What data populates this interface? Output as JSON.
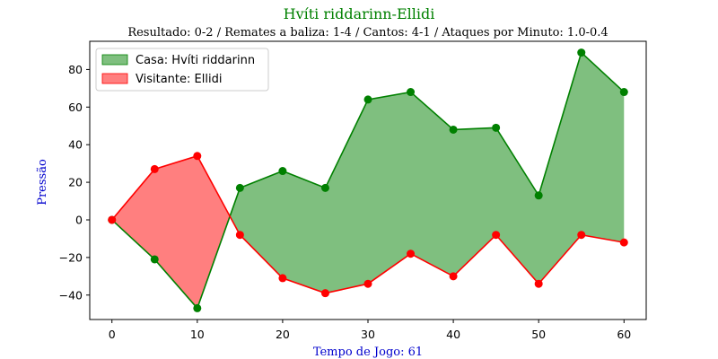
{
  "chart_data": {
    "type": "area",
    "title": "Hvíti riddarinn-Ellidi",
    "subtitle": "Resultado: 0-2 / Remates a baliza: 1-4 / Cantos: 4-1 / Ataques por Minuto: 1.0-0.4",
    "xlabel": "Tempo de Jogo: 61",
    "ylabel": "Pressão",
    "xlim": [
      -2.6,
      62.6
    ],
    "ylim": [
      -53,
      95
    ],
    "x_ticks": [
      0,
      10,
      20,
      30,
      40,
      50,
      60
    ],
    "y_ticks": [
      -40,
      -20,
      0,
      20,
      40,
      60,
      80
    ],
    "x": [
      0,
      5,
      10,
      15,
      20,
      25,
      30,
      35,
      40,
      45,
      50,
      55,
      60
    ],
    "series": [
      {
        "name": "Casa: Hvíti riddarinn",
        "color": "#008000",
        "values": [
          0,
          -21,
          -47,
          17,
          26,
          17,
          64,
          68,
          48,
          49,
          13,
          89,
          68
        ]
      },
      {
        "name": "Visitante: Ellidi",
        "color": "#ff0000",
        "values": [
          0,
          27,
          34,
          -8,
          -31,
          -39,
          -34,
          -18,
          -30,
          -8,
          -34,
          -8,
          -12
        ]
      }
    ],
    "legend_position": "top-left",
    "grid": false,
    "colors": {
      "title": "#008000",
      "axis_label": "#0000cd",
      "home_fill": "#7fbf7f",
      "away_fill": "#ff7f7f"
    }
  }
}
